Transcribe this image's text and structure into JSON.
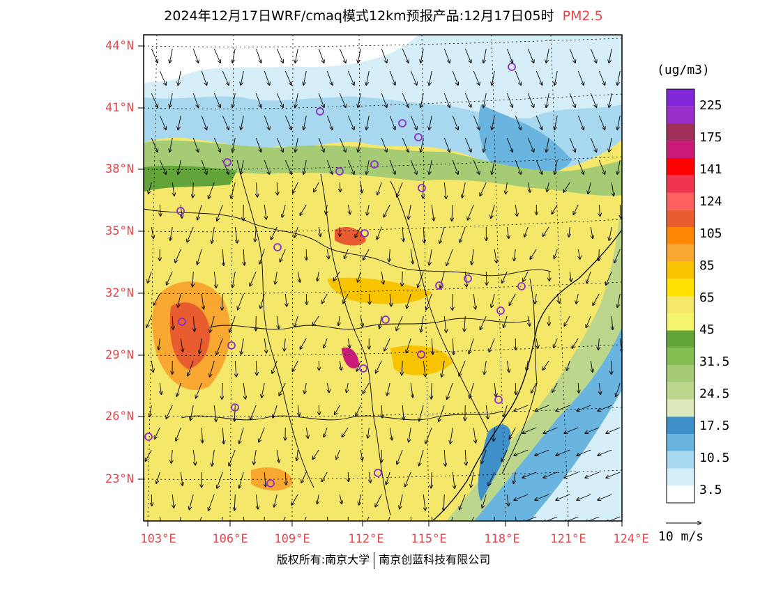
{
  "header": {
    "title": "2024年12月17日WRF/cmaq模式12km预报产品:12月17日05时",
    "variable": "PM2.5"
  },
  "map": {
    "lat_labels": [
      "44°N",
      "41°N",
      "38°N",
      "35°N",
      "32°N",
      "29°N",
      "26°N",
      "23°N"
    ],
    "lon_labels": [
      "103°E",
      "106°E",
      "109°E",
      "112°E",
      "115°E",
      "118°E",
      "121°E",
      "124°E"
    ],
    "background_color": "#f5e76a"
  },
  "colorbar": {
    "unit": "(ug/m3)",
    "colors": [
      "#ffffff",
      "#d6eef8",
      "#a8d8f0",
      "#6ab4e0",
      "#3f8fc8",
      "#dce8bc",
      "#bcd78c",
      "#a5cc74",
      "#82be50",
      "#63a43a",
      "#f5f56e",
      "#f5e76a",
      "#ffe000",
      "#f8c400",
      "#f8a830",
      "#ff8800",
      "#e85c30",
      "#ff6060",
      "#ef3550",
      "#ff0000",
      "#cc1a78",
      "#a0305a",
      "#9830c8",
      "#8028d8"
    ],
    "ticks": [
      "3.5",
      "10.5",
      "17.5",
      "24.5",
      "31.5",
      "45",
      "65",
      "85",
      "105",
      "124",
      "141",
      "175",
      "225"
    ]
  },
  "wind_reference": {
    "label": "10 m/s"
  },
  "footer": {
    "copyright_left": "版权所有:南京大学",
    "copyright_right": "南京创蓝科技有限公司"
  }
}
